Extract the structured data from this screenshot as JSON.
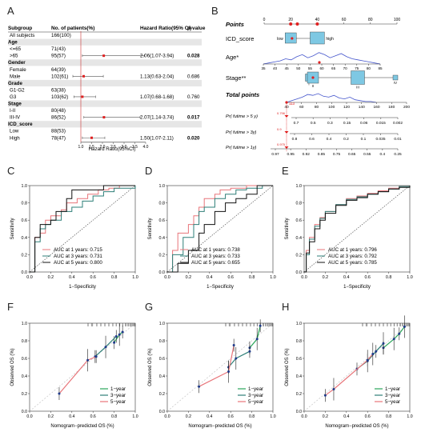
{
  "panel_letters": [
    "A",
    "B",
    "C",
    "D",
    "E",
    "F",
    "G",
    "H"
  ],
  "forest": {
    "headers": {
      "subgroup": "Subgroup",
      "n": "No. of patients(%)",
      "hr": "Hazard Ratio(95% CI)",
      "p": "p-value"
    },
    "rows": [
      {
        "label": "All subjects",
        "n": "166(100)",
        "group": false
      },
      {
        "label": "Age",
        "group": true
      },
      {
        "label": "<=65",
        "n": "71(43)",
        "group": false
      },
      {
        "label": ">65",
        "n": "95(57)",
        "group": false,
        "hr": 2.06,
        "lo": 1.07,
        "hi": 3.94,
        "hr_text": "2.06(1.07-3.94)",
        "p": "0.028",
        "sig": true
      },
      {
        "label": "Gender",
        "group": true
      },
      {
        "label": "Female",
        "n": "64(39)",
        "group": false
      },
      {
        "label": "Male",
        "n": "102(61)",
        "group": false,
        "hr": 1.13,
        "lo": 0.63,
        "hi": 2.04,
        "hr_text": "1.13(0.63-2.04)",
        "p": "0.686",
        "sig": false
      },
      {
        "label": "Grade",
        "group": true
      },
      {
        "label": "G1-G2",
        "n": "63(38)",
        "group": false
      },
      {
        "label": "G3",
        "n": "103(62)",
        "group": false,
        "hr": 1.07,
        "lo": 0.68,
        "hi": 1.68,
        "hr_text": "1.07(0.68-1.68)",
        "p": "0.760",
        "sig": false
      },
      {
        "label": "Stage",
        "group": true
      },
      {
        "label": "I-II",
        "n": "80(48)",
        "group": false
      },
      {
        "label": "III-IV",
        "n": "86(52)",
        "group": false,
        "hr": 2.07,
        "lo": 1.14,
        "hi": 3.74,
        "hr_text": "2.07(1.14-3.74)",
        "p": "0.017",
        "sig": true
      },
      {
        "label": "ICD_score",
        "group": true
      },
      {
        "label": "Low",
        "n": "88(53)",
        "group": false
      },
      {
        "label": "High",
        "n": "78(47)",
        "group": false,
        "hr": 1.5,
        "lo": 1.07,
        "hi": 2.11,
        "hr_text": "1.50(1.07-2.11)",
        "p": "0.020",
        "sig": true
      }
    ],
    "ticks": [
      "1.0",
      "1.5",
      "2.0",
      "2.5",
      "3.0",
      "3.5",
      "4.0"
    ],
    "xlabel": "Hazard Ratio(95%CI)"
  },
  "nomogram": {
    "points_label": "Points",
    "points_ticks": [
      "0",
      "20",
      "40",
      "60",
      "80",
      "100"
    ],
    "icd_label": "ICD_score",
    "icd_low": "low",
    "icd_high": "high",
    "age_label": "Age*",
    "age_ticks": [
      "35",
      "40",
      "45",
      "50",
      "55",
      "60",
      "65",
      "70",
      "75",
      "80",
      "85"
    ],
    "stage_label": "Stage**",
    "stage_levels": [
      "I",
      "II",
      "III",
      "IV"
    ],
    "total_label": "Total points",
    "total_ticks": [
      "40",
      "60",
      "80",
      "100",
      "120",
      "140",
      "160",
      "180",
      "200"
    ],
    "total_value": "113",
    "rows": [
      {
        "label": "Pr( futime > 5 y)",
        "values": [
          "0.7",
          "0.5",
          "0.3",
          "0.15",
          "0.06",
          "0.015",
          "0.002"
        ],
        "marker": "0.796"
      },
      {
        "label": "Pr( futime > 3y)",
        "values": [
          "0.8",
          "0.6",
          "0.4",
          "0.2",
          "0.1",
          "0.035",
          "0.01"
        ],
        "marker": "0.9"
      },
      {
        "label": "Pr( futime > 1y)",
        "values": [
          "0.97",
          "0.95",
          "0.92",
          "0.85",
          "0.75",
          "0.65",
          "0.55",
          "0.4",
          "0.25"
        ],
        "marker": "0.975"
      }
    ]
  },
  "roc_common": {
    "xlabel": "1−Specificity",
    "ylabel": "Sensitivity",
    "ticks": [
      "0.0",
      "0.2",
      "0.4",
      "0.6",
      "0.8",
      "1.0"
    ]
  },
  "roc_panels": [
    {
      "id": "C",
      "legend": [
        "AUC at 1 years: 0.715",
        "AUC at 3 years: 0.731",
        "AUC at 5 years: 0.800"
      ]
    },
    {
      "id": "D",
      "legend": [
        "AUC at 1 years: 0.738",
        "AUC at 3 years: 0.733",
        "AUC at 5 years: 0.655"
      ]
    },
    {
      "id": "E",
      "legend": [
        "AUC at 1 years: 0.796",
        "AUC at 3 years: 0.792",
        "AUC at 5 years: 0.785"
      ]
    }
  ],
  "cal_common": {
    "xlabel": "Nomogram−predicted OS (%)",
    "ylabel": "Observed OS (%)",
    "ticks": [
      "0.0",
      "0.2",
      "0.4",
      "0.6",
      "0.8",
      "1.0"
    ],
    "legend": [
      "1−year",
      "3−year",
      "5−year"
    ]
  },
  "colors": {
    "one_year": "#e8757a",
    "three_year": "#2e7f78",
    "five_year": "#111111",
    "highlight": "#e02020",
    "box": "#7ec8e3",
    "density": "#4455cc",
    "green": "#2aa55a"
  },
  "chart_data": [
    {
      "type": "line",
      "panel": "C",
      "title": "",
      "xlabel": "1−Specificity",
      "ylabel": "Sensitivity",
      "xlim": [
        0,
        1
      ],
      "ylim": [
        0,
        1
      ],
      "series": [
        {
          "name": "AUC at 1 years: 0.715",
          "x": [
            0,
            0.05,
            0.1,
            0.15,
            0.2,
            0.3,
            0.35,
            0.45,
            0.55,
            0.65,
            0.75,
            0.85,
            1
          ],
          "y": [
            0,
            0.4,
            0.45,
            0.6,
            0.65,
            0.72,
            0.8,
            0.85,
            0.9,
            0.95,
            0.97,
            1,
            1
          ]
        },
        {
          "name": "AUC at 3 years: 0.731",
          "x": [
            0,
            0.05,
            0.1,
            0.15,
            0.2,
            0.3,
            0.4,
            0.5,
            0.6,
            0.7,
            0.8,
            1
          ],
          "y": [
            0,
            0.35,
            0.5,
            0.55,
            0.6,
            0.7,
            0.75,
            0.82,
            0.88,
            0.93,
            0.97,
            1
          ]
        },
        {
          "name": "AUC at 5 years: 0.800",
          "x": [
            0,
            0.05,
            0.1,
            0.2,
            0.25,
            0.35,
            0.4,
            0.55,
            0.7,
            0.8,
            1
          ],
          "y": [
            0,
            0.4,
            0.55,
            0.6,
            0.7,
            0.85,
            0.95,
            0.95,
            1,
            1,
            1
          ]
        }
      ]
    },
    {
      "type": "line",
      "panel": "D",
      "title": "",
      "xlabel": "1−Specificity",
      "ylabel": "Sensitivity",
      "xlim": [
        0,
        1
      ],
      "ylim": [
        0,
        1
      ],
      "series": [
        {
          "name": "AUC at 1 years: 0.738",
          "x": [
            0,
            0.05,
            0.1,
            0.2,
            0.25,
            0.3,
            0.35,
            0.45,
            0.5,
            0.6,
            0.75,
            0.85,
            1
          ],
          "y": [
            0,
            0.25,
            0.45,
            0.55,
            0.65,
            0.75,
            0.85,
            0.9,
            0.95,
            0.97,
            1,
            1,
            1
          ]
        },
        {
          "name": "AUC at 3 years: 0.733",
          "x": [
            0,
            0.05,
            0.15,
            0.25,
            0.3,
            0.35,
            0.45,
            0.55,
            0.65,
            0.75,
            0.9,
            1
          ],
          "y": [
            0,
            0.2,
            0.4,
            0.55,
            0.7,
            0.75,
            0.85,
            0.9,
            0.95,
            0.97,
            1,
            1
          ]
        },
        {
          "name": "AUC at 5 years: 0.655",
          "x": [
            0,
            0.1,
            0.2,
            0.3,
            0.35,
            0.45,
            0.55,
            0.65,
            0.75,
            0.85,
            1
          ],
          "y": [
            0,
            0.1,
            0.25,
            0.45,
            0.55,
            0.7,
            0.8,
            0.85,
            0.9,
            1,
            1
          ]
        }
      ]
    },
    {
      "type": "line",
      "panel": "E",
      "title": "",
      "xlabel": "1−Specificity",
      "ylabel": "Sensitivity",
      "xlim": [
        0,
        1
      ],
      "ylim": [
        0,
        1
      ],
      "series": [
        {
          "name": "AUC at 1 years: 0.796",
          "x": [
            0,
            0.02,
            0.05,
            0.1,
            0.15,
            0.2,
            0.3,
            0.4,
            0.5,
            0.6,
            0.7,
            0.8,
            0.9,
            1
          ],
          "y": [
            0,
            0.25,
            0.4,
            0.55,
            0.63,
            0.7,
            0.78,
            0.85,
            0.88,
            0.91,
            0.94,
            0.97,
            0.99,
            1
          ]
        },
        {
          "name": "AUC at 3 years: 0.792",
          "x": [
            0,
            0.02,
            0.05,
            0.1,
            0.15,
            0.2,
            0.3,
            0.4,
            0.5,
            0.6,
            0.7,
            0.8,
            0.9,
            1
          ],
          "y": [
            0,
            0.2,
            0.38,
            0.53,
            0.62,
            0.7,
            0.78,
            0.84,
            0.87,
            0.9,
            0.93,
            0.96,
            0.99,
            1
          ]
        },
        {
          "name": "AUC at 5 years: 0.785",
          "x": [
            0,
            0.02,
            0.05,
            0.1,
            0.15,
            0.2,
            0.3,
            0.4,
            0.5,
            0.6,
            0.7,
            0.8,
            0.9,
            1
          ],
          "y": [
            0,
            0.22,
            0.35,
            0.5,
            0.6,
            0.68,
            0.77,
            0.83,
            0.86,
            0.9,
            0.93,
            0.96,
            0.98,
            1
          ]
        }
      ]
    },
    {
      "type": "line",
      "panel": "F",
      "title": "",
      "xlabel": "Nomogram−predicted OS (%)",
      "ylabel": "Observed OS (%)",
      "xlim": [
        0,
        1
      ],
      "ylim": [
        0,
        1
      ],
      "series": [
        {
          "name": "1−year",
          "x": [
            0.8,
            0.85,
            0.88
          ],
          "y": [
            0.78,
            0.87,
            0.9
          ]
        },
        {
          "name": "3−year",
          "x": [
            0.62,
            0.72,
            0.82
          ],
          "y": [
            0.62,
            0.73,
            0.85
          ]
        },
        {
          "name": "5−year",
          "x": [
            0.28,
            0.55,
            0.63
          ],
          "y": [
            0.2,
            0.58,
            0.62
          ]
        }
      ]
    },
    {
      "type": "line",
      "panel": "G",
      "title": "",
      "xlabel": "Nomogram−predicted OS (%)",
      "ylabel": "Observed OS (%)",
      "xlim": [
        0,
        1
      ],
      "ylim": [
        0,
        1
      ],
      "series": [
        {
          "name": "1−year",
          "x": [
            0.78,
            0.85,
            0.88
          ],
          "y": [
            0.72,
            0.82,
            0.97
          ]
        },
        {
          "name": "3−year",
          "x": [
            0.58,
            0.65,
            0.78
          ],
          "y": [
            0.5,
            0.6,
            0.68
          ]
        },
        {
          "name": "5−year",
          "x": [
            0.3,
            0.58,
            0.63
          ],
          "y": [
            0.28,
            0.45,
            0.75
          ]
        }
      ]
    },
    {
      "type": "line",
      "panel": "H",
      "title": "",
      "xlabel": "Nomogram−predicted OS (%)",
      "ylabel": "Observed OS (%)",
      "xlim": [
        0,
        1
      ],
      "ylim": [
        0,
        1
      ],
      "series": [
        {
          "name": "1−year",
          "x": [
            0.75,
            0.85,
            0.9,
            0.95
          ],
          "y": [
            0.72,
            0.82,
            0.88,
            0.96
          ]
        },
        {
          "name": "3−year",
          "x": [
            0.5,
            0.6,
            0.68,
            0.75
          ],
          "y": [
            0.48,
            0.57,
            0.68,
            0.77
          ]
        },
        {
          "name": "5−year",
          "x": [
            0.2,
            0.28,
            0.6,
            0.65
          ],
          "y": [
            0.18,
            0.25,
            0.58,
            0.65
          ]
        }
      ]
    }
  ]
}
